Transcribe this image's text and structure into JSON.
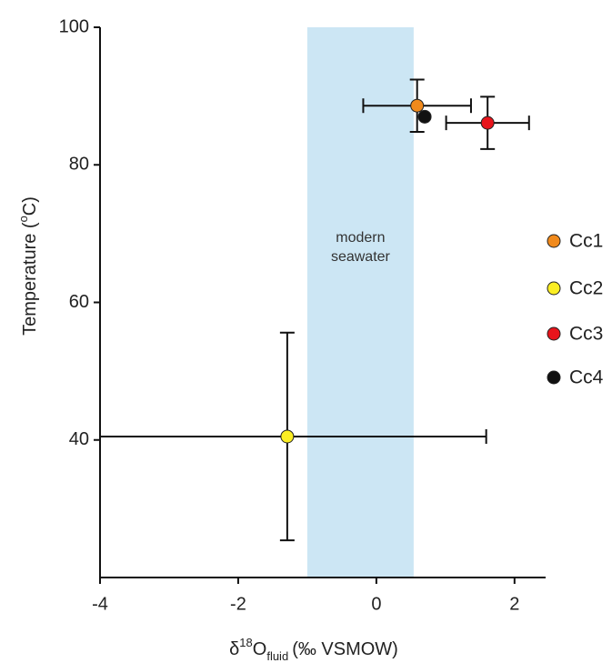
{
  "chart_data": {
    "type": "scatter",
    "xlabel_parts": [
      "δ",
      "18",
      "O",
      "fluid",
      "(‰ VSMOW)"
    ],
    "ylabel_parts": [
      "Temperature (",
      "o",
      "C)"
    ],
    "xlim": [
      -4,
      2.45
    ],
    "ylim": [
      20,
      100
    ],
    "xticks": [
      -4,
      -2,
      0,
      2
    ],
    "yticks": [
      40,
      60,
      80,
      100
    ],
    "band": {
      "x": [
        -1,
        0.54
      ],
      "color": "#cce6f4",
      "label": [
        "modern",
        "seawater"
      ]
    },
    "series": [
      {
        "name": "Cc1",
        "color": "#f18a1c",
        "x": [
          0.59
        ],
        "values": [
          88.6
        ],
        "x_error": [
          0.78
        ],
        "y_error": [
          3.8
        ]
      },
      {
        "name": "Cc2",
        "color": "#fbee23",
        "x": [
          -1.29
        ],
        "values": [
          40.5
        ],
        "x_error": [
          2.88
        ],
        "y_error": [
          15.1
        ]
      },
      {
        "name": "Cc3",
        "color": "#e8141b",
        "x": [
          1.61
        ],
        "values": [
          86.1
        ],
        "x_error": [
          0.6
        ],
        "y_error": [
          3.8
        ]
      },
      {
        "name": "Cc4",
        "color": "#111111",
        "x": [
          0.7
        ],
        "values": [
          87.0
        ],
        "x_error": [
          null
        ],
        "y_error": [
          null
        ]
      }
    ],
    "legend": "right"
  }
}
